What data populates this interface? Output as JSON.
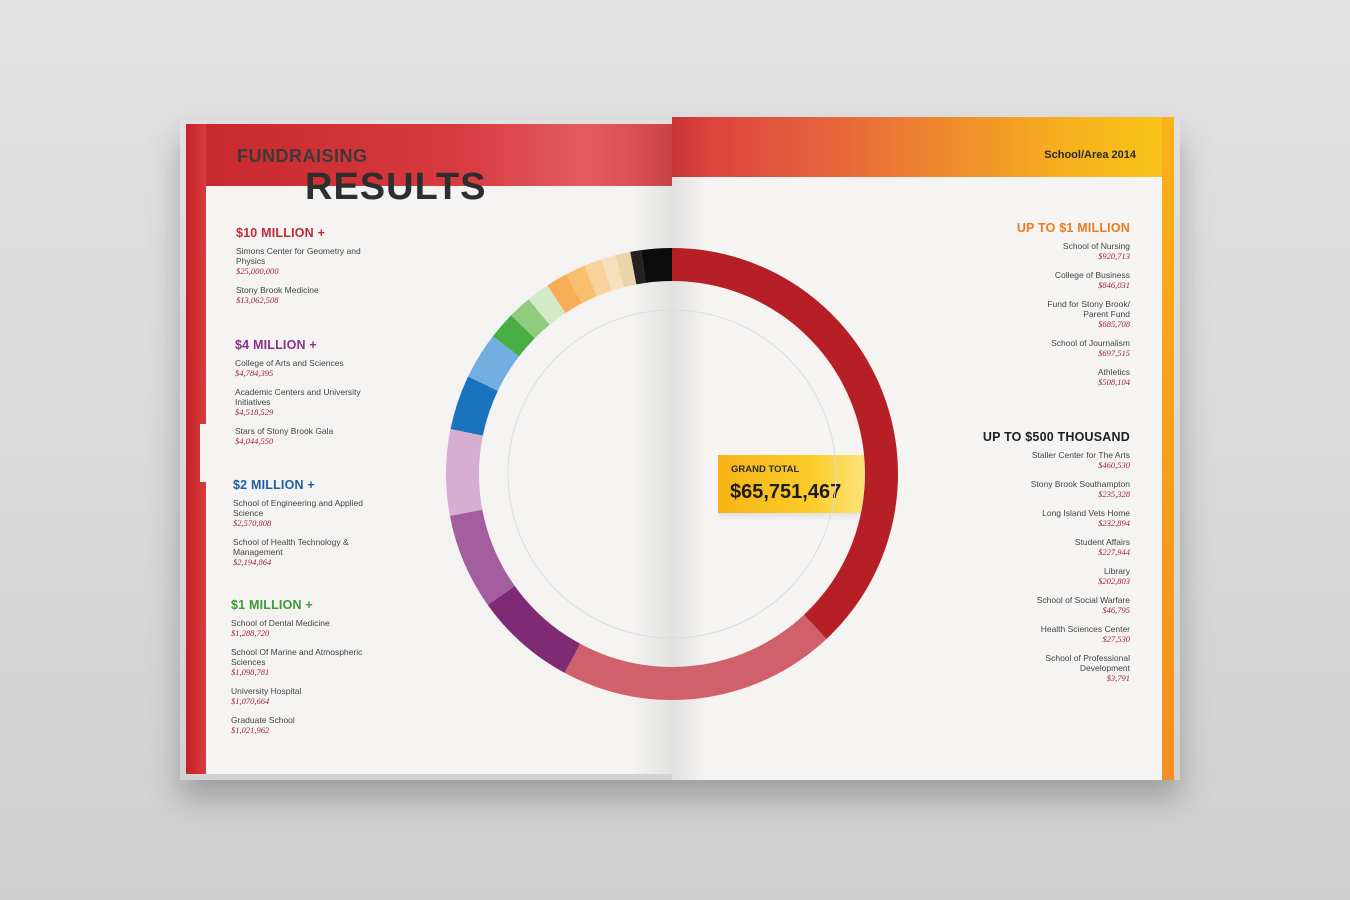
{
  "title": {
    "line1": "FUNDRAISING",
    "line2": "RESULTS"
  },
  "subtitle": "School/Area 2014",
  "grand_total": {
    "label": "GRAND TOTAL",
    "value": "$65,751,467"
  },
  "colors": {
    "tier1": "#c22a3a",
    "tier2": "#8e2f87",
    "tier3": "#1f5fa8",
    "tier4": "#3c9b3a",
    "tier5": "#ee7a1f",
    "tier6": "#1f1f1f",
    "amount": "#a1233a"
  },
  "left_tiers": [
    {
      "heading": "$10 MILLION +",
      "entries": [
        {
          "name": "Simons Center for Geometry and Physics",
          "amount": "$25,000,000"
        },
        {
          "name": "Stony Brook Medicine",
          "amount": "$13,062,508"
        }
      ]
    },
    {
      "heading": "$4 MILLION +",
      "entries": [
        {
          "name": "College of Arts and Sciences",
          "amount": "$4,784,395"
        },
        {
          "name": "Academic Centers and University Initiatives",
          "amount": "$4,518,529"
        },
        {
          "name": "Stars of Stony Brook Gala",
          "amount": "$4,044,550"
        }
      ]
    },
    {
      "heading": "$2 MILLION +",
      "entries": [
        {
          "name": "School of Engineering and Applied Science",
          "amount": "$2,570,808"
        },
        {
          "name": "School of Health Technology & Management",
          "amount": "$2,194,864"
        }
      ]
    },
    {
      "heading": "$1 MILLION +",
      "entries": [
        {
          "name": "School of Dental Medicine",
          "amount": "$1,288,720"
        },
        {
          "name": "School Of Marine and Atmospheric Sciences",
          "amount": "$1,098,781"
        },
        {
          "name": "University Hospital",
          "amount": "$1,070,664"
        },
        {
          "name": "Graduate School",
          "amount": "$1,021,962"
        }
      ]
    }
  ],
  "right_tiers": [
    {
      "heading": "UP TO $1 MILLION",
      "entries": [
        {
          "name": "School of Nursing",
          "amount": "$920,713"
        },
        {
          "name": "College of Business",
          "amount": "$846,031"
        },
        {
          "name": "Fund for Stony Brook/ Parent Fund",
          "amount": "$685,708"
        },
        {
          "name": "School of Journalism",
          "amount": "$697,515"
        },
        {
          "name": "Athletics",
          "amount": "$508,104"
        }
      ]
    },
    {
      "heading": "UP TO $500 THOUSAND",
      "entries": [
        {
          "name": "Staller Center for The Arts",
          "amount": "$460,530"
        },
        {
          "name": "Stony Brook Southampton",
          "amount": "$235,328"
        },
        {
          "name": "Long Island Vets Home",
          "amount": "$232,894"
        },
        {
          "name": "Student Affairs",
          "amount": "$227,944"
        },
        {
          "name": "Library",
          "amount": "$202,803"
        },
        {
          "name": "School of Social Warfare",
          "amount": "$46,795"
        },
        {
          "name": "Health Sciences Center",
          "amount": "$27,530"
        },
        {
          "name": "School of Professional Development",
          "amount": "$3,791"
        }
      ]
    }
  ],
  "chart_data": {
    "type": "pie",
    "values": [
      25000000,
      13062508,
      4784395,
      4518529,
      4044550,
      2570808,
      2194864,
      1288720,
      1098781,
      1070664,
      1021962,
      920713,
      846031,
      685708,
      697515,
      508104,
      1437615
    ],
    "colors": [
      "#b71f27",
      "#d0606a",
      "#7e2a74",
      "#a45d9f",
      "#d6aed1",
      "#1c73bd",
      "#72aedf",
      "#49ad45",
      "#8fcc7f",
      "#d4e9c6",
      "#f6ad55",
      "#f8bf6c",
      "#f9d19a",
      "#f5dfbd",
      "#ead4a8",
      "#262222",
      "#0d0c0c"
    ]
  }
}
